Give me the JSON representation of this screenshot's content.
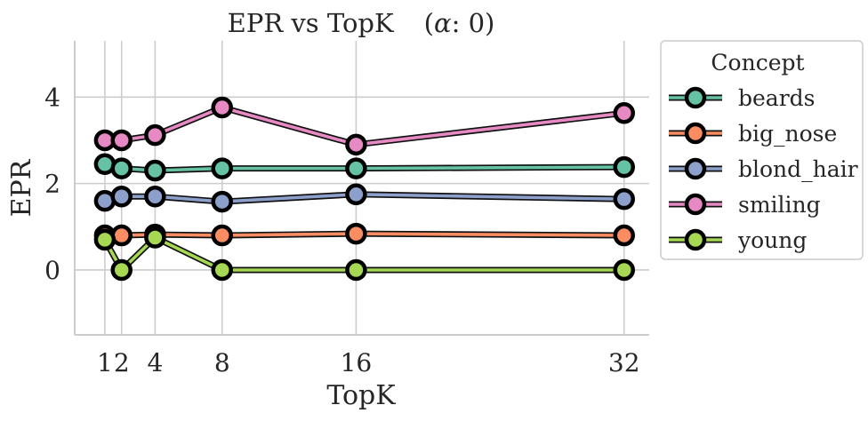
{
  "chart_data": {
    "type": "line",
    "title": "EPR vs TopK",
    "title_alpha_prefix": "(",
    "title_alpha_symbol": "α",
    "title_alpha_suffix": ": 0)",
    "xlabel": "TopK",
    "ylabel": "EPR",
    "x": [
      1,
      2,
      4,
      8,
      16,
      32
    ],
    "xticks": [
      "1",
      "2",
      "4",
      "8",
      "16",
      "32"
    ],
    "yticks": [
      0,
      2,
      4
    ],
    "ylim": [
      -1.5,
      5.3
    ],
    "xlim": [
      -0.8,
      33.5
    ],
    "grid": true,
    "legend": {
      "title": "Concept",
      "placement": "outside-right"
    },
    "series": [
      {
        "name": "beards",
        "color": "#66c2a5",
        "values": [
          2.45,
          2.35,
          2.3,
          2.35,
          2.35,
          2.38
        ]
      },
      {
        "name": "big_nose",
        "color": "#fc8d62",
        "values": [
          0.8,
          0.8,
          0.82,
          0.8,
          0.84,
          0.8
        ]
      },
      {
        "name": "blond_hair",
        "color": "#8da0cb",
        "values": [
          1.6,
          1.7,
          1.7,
          1.58,
          1.75,
          1.64
        ]
      },
      {
        "name": "smiling",
        "color": "#e78ac3",
        "values": [
          3.0,
          3.0,
          3.12,
          3.76,
          2.9,
          3.63
        ]
      },
      {
        "name": "young",
        "color": "#a6d854",
        "values": [
          0.7,
          0.0,
          0.75,
          0.0,
          0.0,
          0.0
        ]
      }
    ]
  }
}
